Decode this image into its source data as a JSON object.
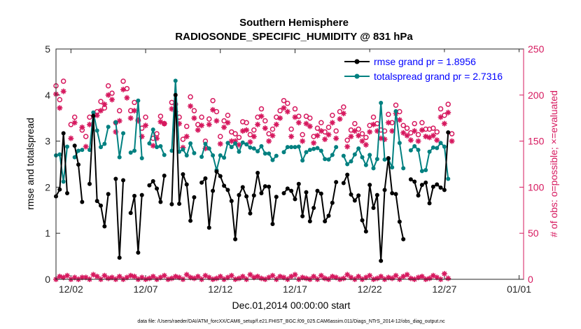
{
  "chart_data": {
    "type": "line",
    "title": "Southern Hemisphere",
    "subtitle": "RADIOSONDE_SPECIFIC_HUMIDITY @ 831 hPa",
    "xlabel": "Dec.01,2014 00:00:00 start",
    "ylabel_left": "rmse and totalspread",
    "ylabel_right": "# of obs: o=possible; ×=evaluated",
    "x_tick_labels": [
      "12/02",
      "12/07",
      "12/12",
      "12/17",
      "12/22",
      "12/27",
      "01/01"
    ],
    "x_ticks": [
      1,
      6,
      11,
      16,
      21,
      26,
      31
    ],
    "xlim": [
      0,
      31.3
    ],
    "ylim_left": [
      0,
      5
    ],
    "ylim_right": [
      0,
      250
    ],
    "y_ticks_left": [
      0,
      1,
      2,
      3,
      4,
      5
    ],
    "y_ticks_right": [
      0,
      50,
      100,
      150,
      200,
      250
    ],
    "x_step": 0.25,
    "x_start": 0,
    "legend": [
      "rmse grand pr = 1.8956",
      "totalspread grand pr = 2.7316"
    ],
    "legend_location": "top-right",
    "colors": {
      "rmse": "#000000",
      "totalspread": "#008080",
      "obs": "#d6185e",
      "right_axis": "#d6185e",
      "legend_text": "#0000ff"
    },
    "series": [
      {
        "name": "rmse",
        "axis": "left",
        "values": [
          1.8,
          1.95,
          3.17,
          1.87,
          null,
          2.9,
          2.49,
          1.68,
          null,
          2.07,
          3.55,
          1.7,
          1.6,
          1.15,
          1.85,
          null,
          2.18,
          0.47,
          2.15,
          null,
          1.44,
          1.81,
          0.58,
          1.83,
          null,
          2.04,
          2.13,
          1.97,
          1.68,
          2.25,
          null,
          1.63,
          4.0,
          1.64,
          2.28,
          2.06,
          1.27,
          1.78,
          null,
          2.1,
          2.19,
          1.12,
          1.92,
          2.34,
          2.24,
          2.03,
          1.94,
          1.7,
          0.87,
          1.83,
          2.0,
          1.8,
          1.43,
          1.82,
          2.31,
          1.87,
          2.02,
          2.01,
          1.2,
          1.79,
          null,
          1.87,
          1.97,
          1.92,
          1.74,
          2.07,
          1.37,
          1.89,
          1.26,
          1.55,
          1.92,
          1.86,
          1.26,
          1.38,
          1.66,
          2.11,
          null,
          2.09,
          2.27,
          1.84,
          1.71,
          1.82,
          1.28,
          1.04,
          2.05,
          1.55,
          1.83,
          0.4,
          1.94,
          2.63,
          1.87,
          1.85,
          1.25,
          0.87,
          null,
          2.17,
          2.12,
          1.82,
          2.05,
          2.1,
          1.65,
          2.01,
          2.06,
          1.99,
          1.94,
          3.19
        ],
        "gaps": [
          [
            4,
            5
          ],
          [
            6,
            7
          ],
          [
            10,
            12
          ],
          [
            11,
            12
          ],
          [
            20,
            22
          ],
          [
            23,
            24
          ],
          [
            75,
            77
          ]
        ]
      },
      {
        "name": "totalspread",
        "axis": "left",
        "values": [
          2.69,
          2.71,
          2.12,
          2.88,
          null,
          2.65,
          2.79,
          2.81,
          null,
          2.81,
          3.62,
          3.23,
          2.87,
          2.94,
          3.31,
          null,
          3.41,
          2.65,
          3.17,
          null,
          2.75,
          2.79,
          3.88,
          2.63,
          null,
          2.95,
          3.25,
          2.87,
          2.89,
          2.7,
          null,
          2.79,
          4.31,
          2.77,
          2.82,
          2.69,
          2.95,
          2.74,
          null,
          2.66,
          2.94,
          2.84,
          2.69,
          2.37,
          2.69,
          2.64,
          2.96,
          2.87,
          2.95,
          2.77,
          2.97,
          2.93,
          2.86,
          2.84,
          2.78,
          2.89,
          2.73,
          2.73,
          2.59,
          2.68,
          null,
          2.76,
          2.87,
          2.87,
          2.87,
          2.88,
          2.58,
          2.76,
          2.81,
          2.83,
          2.85,
          2.79,
          2.61,
          2.6,
          2.7,
          2.87,
          null,
          2.68,
          2.5,
          2.56,
          2.71,
          2.84,
          2.65,
          2.48,
          2.7,
          2.41,
          2.61,
          3.83,
          2.6,
          2.61,
          2.43,
          3.65,
          2.96,
          2.41,
          null,
          2.8,
          2.89,
          2.81,
          2.35,
          2.37,
          2.77,
          2.86,
          2.85,
          2.96,
          2.88,
          2.18
        ]
      },
      {
        "name": "obs possible",
        "axis": "right",
        "marker": "o",
        "values": [
          210,
          195,
          215,
          null,
          168,
          176,
          null,
          162,
          155,
          176,
          null,
          182,
          193,
          186,
          210,
          202,
          170,
          183,
          215,
          207,
          183,
          192,
          173,
          164,
          176,
          null,
          153,
          158,
          177,
          169,
          null,
          192,
          190,
          176,
          152,
          166,
          198,
          183,
          168,
          176,
          150,
          174,
          194,
          182,
          155,
          172,
          178,
          160,
          158,
          154,
          171,
          170,
          157,
          162,
          176,
          185,
          172,
          158,
          163,
          176,
          183,
          194,
          191,
          163,
          185,
          177,
          157,
          177,
          175,
          155,
          164,
          170,
          160,
          165,
          178,
          161,
          182,
          187,
          151,
          162,
          169,
          163,
          158,
          154,
          167,
          176,
          169,
          162,
          161,
          179,
          170,
          189,
          182,
          167,
          164,
          159,
          169,
          157,
          170,
          163,
          163,
          164,
          160,
          185,
          178,
          190,
          158
        ]
      },
      {
        "name": "obs evaluated",
        "axis": "right",
        "marker": "x",
        "values": [
          201,
          186,
          204,
          null,
          153,
          170,
          null,
          165,
          144,
          168,
          null,
          178,
          183,
          190,
          200,
          195,
          160,
          172,
          206,
          197,
          175,
          183,
          172,
          155,
          167,
          null,
          145,
          153,
          171,
          169,
          null,
          185,
          182,
          169,
          143,
          155,
          188,
          175,
          162,
          167,
          142,
          168,
          184,
          172,
          147,
          165,
          170,
          150,
          150,
          146,
          161,
          162,
          149,
          155,
          168,
          177,
          164,
          150,
          156,
          168,
          175,
          186,
          182,
          155,
          176,
          170,
          150,
          169,
          166,
          148,
          156,
          161,
          152,
          157,
          170,
          153,
          174,
          180,
          144,
          155,
          161,
          156,
          150,
          146,
          160,
          168,
          161,
          153,
          152,
          170,
          161,
          180,
          173,
          159,
          156,
          151,
          161,
          150,
          162,
          155,
          154,
          156,
          151,
          176,
          169,
          181,
          150
        ],
        "baseline_values": [
          0,
          3,
          2,
          4,
          0,
          2,
          0,
          2,
          2,
          0,
          5,
          3,
          0,
          4,
          1,
          2,
          0,
          3,
          0,
          2,
          4,
          3,
          0,
          2,
          0,
          1,
          3,
          0,
          2,
          4,
          0,
          1,
          3,
          2,
          0,
          5,
          2,
          1,
          3,
          0,
          4,
          2,
          0,
          1,
          3,
          0,
          2,
          4,
          0,
          1,
          3,
          0,
          5,
          2,
          3,
          1,
          0,
          2,
          4,
          0,
          3,
          2,
          0,
          3,
          5,
          0,
          2,
          1,
          0,
          3,
          0,
          4,
          1,
          0,
          3,
          2,
          0,
          1,
          5,
          2,
          0,
          3,
          0,
          2,
          4,
          0,
          1,
          3,
          0,
          2,
          1,
          4,
          0,
          3,
          5,
          1,
          0,
          2,
          3,
          0,
          1,
          4,
          2,
          0,
          6,
          1
        ]
      }
    ],
    "data_file": "data file: /Users/raeder/DAI/ATM_forcXX/CAM6_setup/f.e21.FHIST_BGC.f09_025.CAM6assim.011/Diags_NTrS_2014-12/obs_diag_output.nc"
  }
}
